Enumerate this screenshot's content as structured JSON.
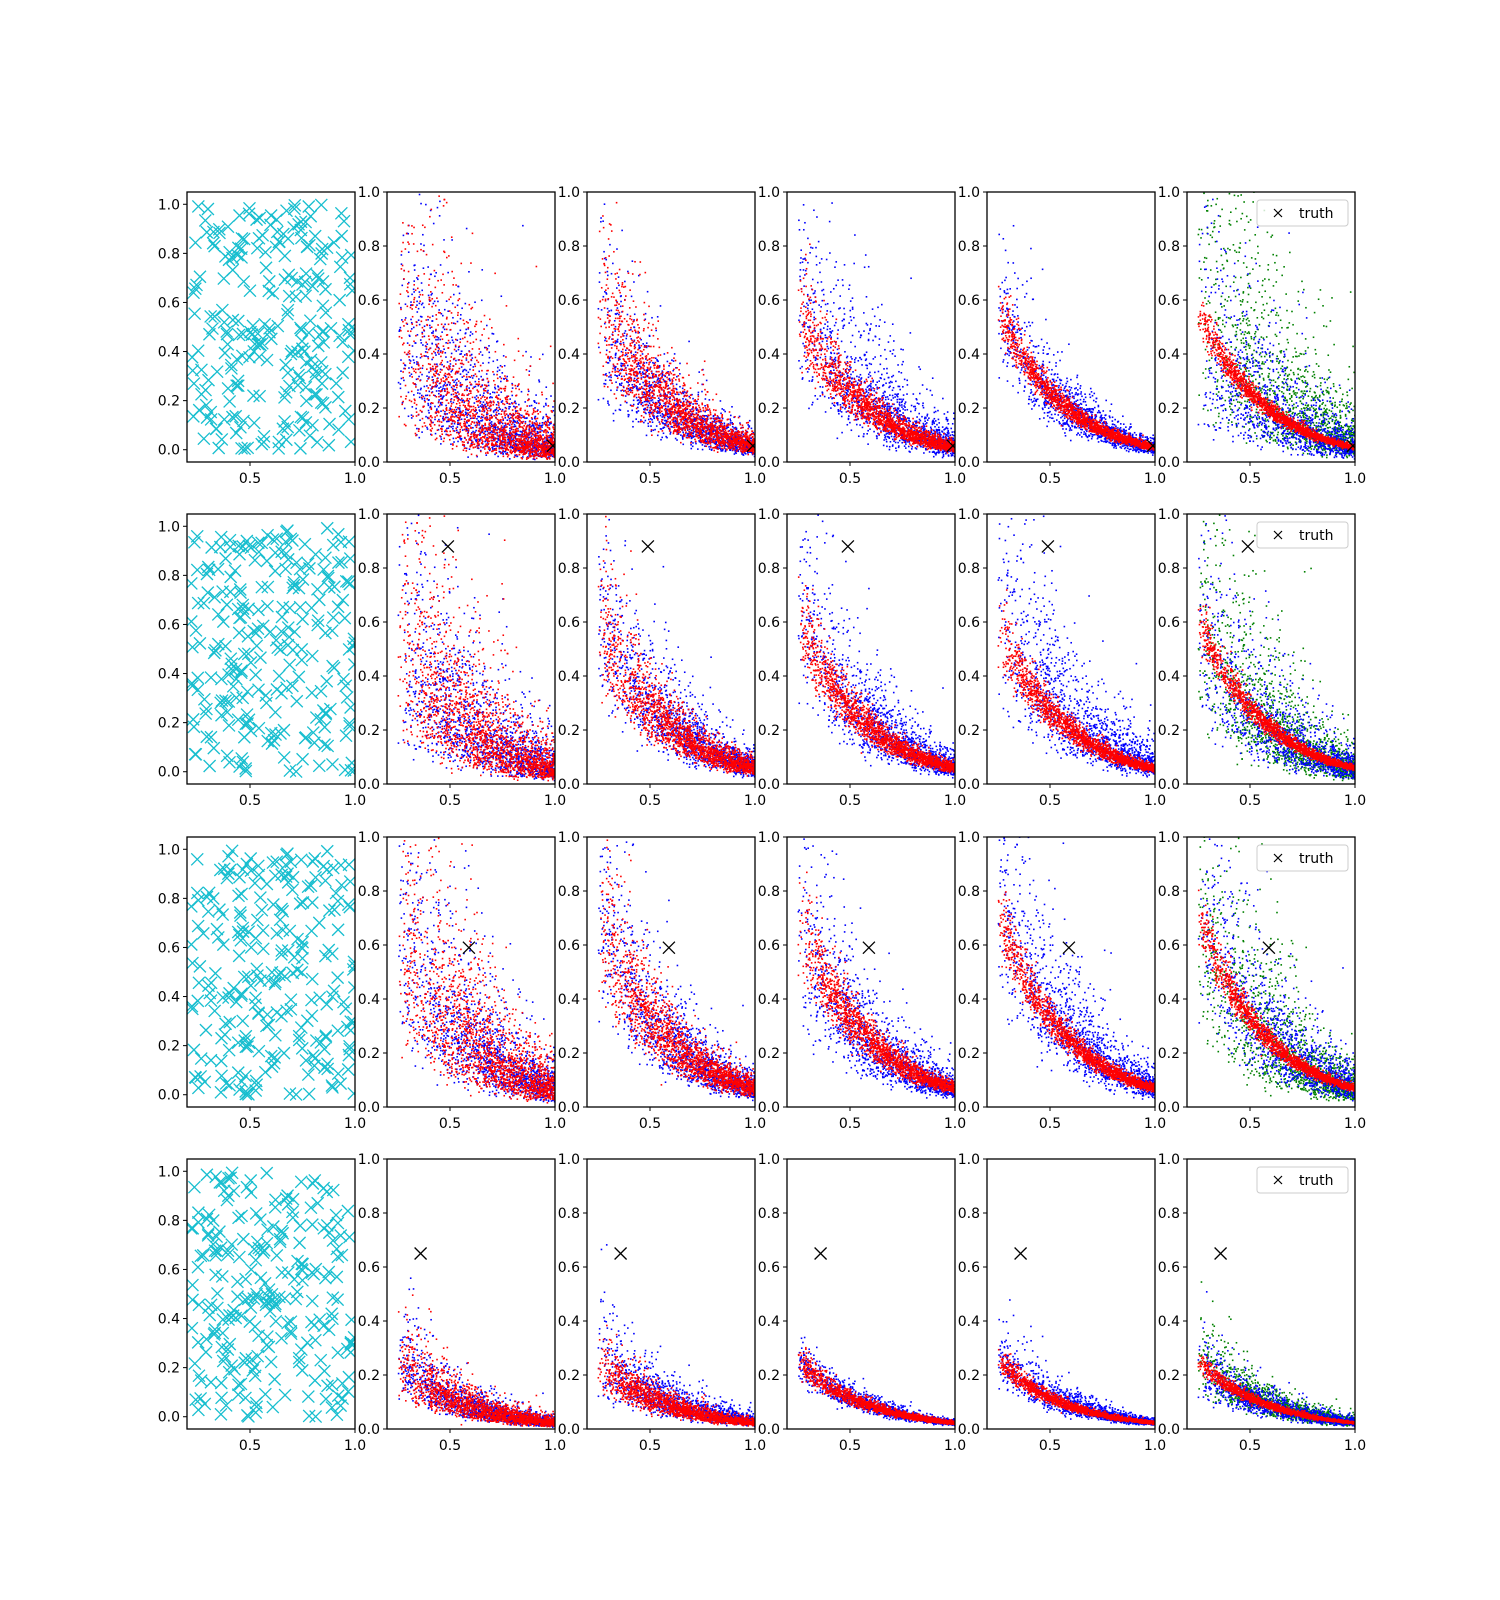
{
  "chart_data": {
    "type": "scatter",
    "layout": {
      "rows": 4,
      "cols": 6
    },
    "first_column": {
      "marker": "x",
      "color": "#17becf",
      "xlim": [
        0.2,
        1.0
      ],
      "ylim": [
        -0.05,
        1.05
      ],
      "xticks": [
        0.5,
        1.0
      ],
      "xtick_labels": [
        "0.5",
        "1.0"
      ],
      "yticks": [
        0.0,
        0.2,
        0.4,
        0.6,
        0.8,
        1.0
      ],
      "ytick_labels": [
        "0.0",
        "0.2",
        "0.4",
        "0.6",
        "0.8",
        "1.0"
      ],
      "points_per_panel": 250
    },
    "posterior_columns": {
      "xlim": [
        0.2,
        1.0
      ],
      "ylim": [
        0.0,
        1.0
      ],
      "xticks": [
        0.5,
        1.0
      ],
      "xtick_labels": [
        "0.5",
        "1.0"
      ],
      "yticks": [
        0.0,
        0.2,
        0.4,
        0.6,
        0.8,
        1.0
      ],
      "ytick_labels": [
        "0.0",
        "0.2",
        "0.4",
        "0.6",
        "0.8",
        "1.0"
      ],
      "series_colors": {
        "blue": "#0000ff",
        "red": "#ff0000",
        "green": "#008000"
      },
      "legend_label": "truth",
      "legend_location": "upper right",
      "truth_marker": "x",
      "truth_color": "#000000"
    },
    "rows": [
      {
        "truth": {
          "x": 0.99,
          "y": 0.06
        },
        "curve_k": 0.055,
        "blue_spread": [
          0.6,
          0.35,
          0.45,
          0.25,
          0.55
        ],
        "red_spread": [
          0.6,
          0.3,
          0.18,
          0.1,
          0.1
        ],
        "blue_shift": [
          0.0,
          0.0,
          0.08,
          0.0,
          0.0
        ],
        "red_shift": [
          0.0,
          0.05,
          0.0,
          0.0,
          0.0
        ],
        "green_spread": 0.6,
        "green_shift": 0.2
      },
      {
        "truth": {
          "x": 0.49,
          "y": 0.88
        },
        "curve_k": 0.06,
        "blue_spread": [
          0.55,
          0.35,
          0.35,
          0.4,
          0.45
        ],
        "red_spread": [
          0.55,
          0.25,
          0.15,
          0.12,
          0.1
        ],
        "blue_shift": [
          0.0,
          0.04,
          0.05,
          0.1,
          0.0
        ],
        "red_shift": [
          0.0,
          0.0,
          0.0,
          -0.02,
          0.0
        ],
        "green_spread": 0.5,
        "green_shift": 0.02
      },
      {
        "truth": {
          "x": 0.59,
          "y": 0.59
        },
        "curve_k": 0.07,
        "blue_spread": [
          0.5,
          0.35,
          0.35,
          0.35,
          0.4
        ],
        "red_spread": [
          0.5,
          0.25,
          0.15,
          0.1,
          0.1
        ],
        "blue_shift": [
          0.0,
          0.0,
          0.0,
          0.06,
          0.05
        ],
        "red_shift": [
          0.0,
          0.0,
          0.0,
          0.0,
          0.0
        ],
        "green_spread": 0.5,
        "green_shift": 0.0
      },
      {
        "truth": {
          "x": 0.36,
          "y": 0.65
        },
        "curve_k": 0.025,
        "blue_spread": [
          0.35,
          0.35,
          0.2,
          0.25,
          0.3
        ],
        "red_spread": [
          0.35,
          0.25,
          0.12,
          0.1,
          0.1
        ],
        "blue_shift": [
          0.0,
          0.08,
          0.0,
          0.03,
          0.0
        ],
        "red_shift": [
          0.0,
          0.0,
          0.0,
          0.0,
          0.0
        ],
        "green_spread": 0.3,
        "green_shift": 0.04
      }
    ]
  }
}
